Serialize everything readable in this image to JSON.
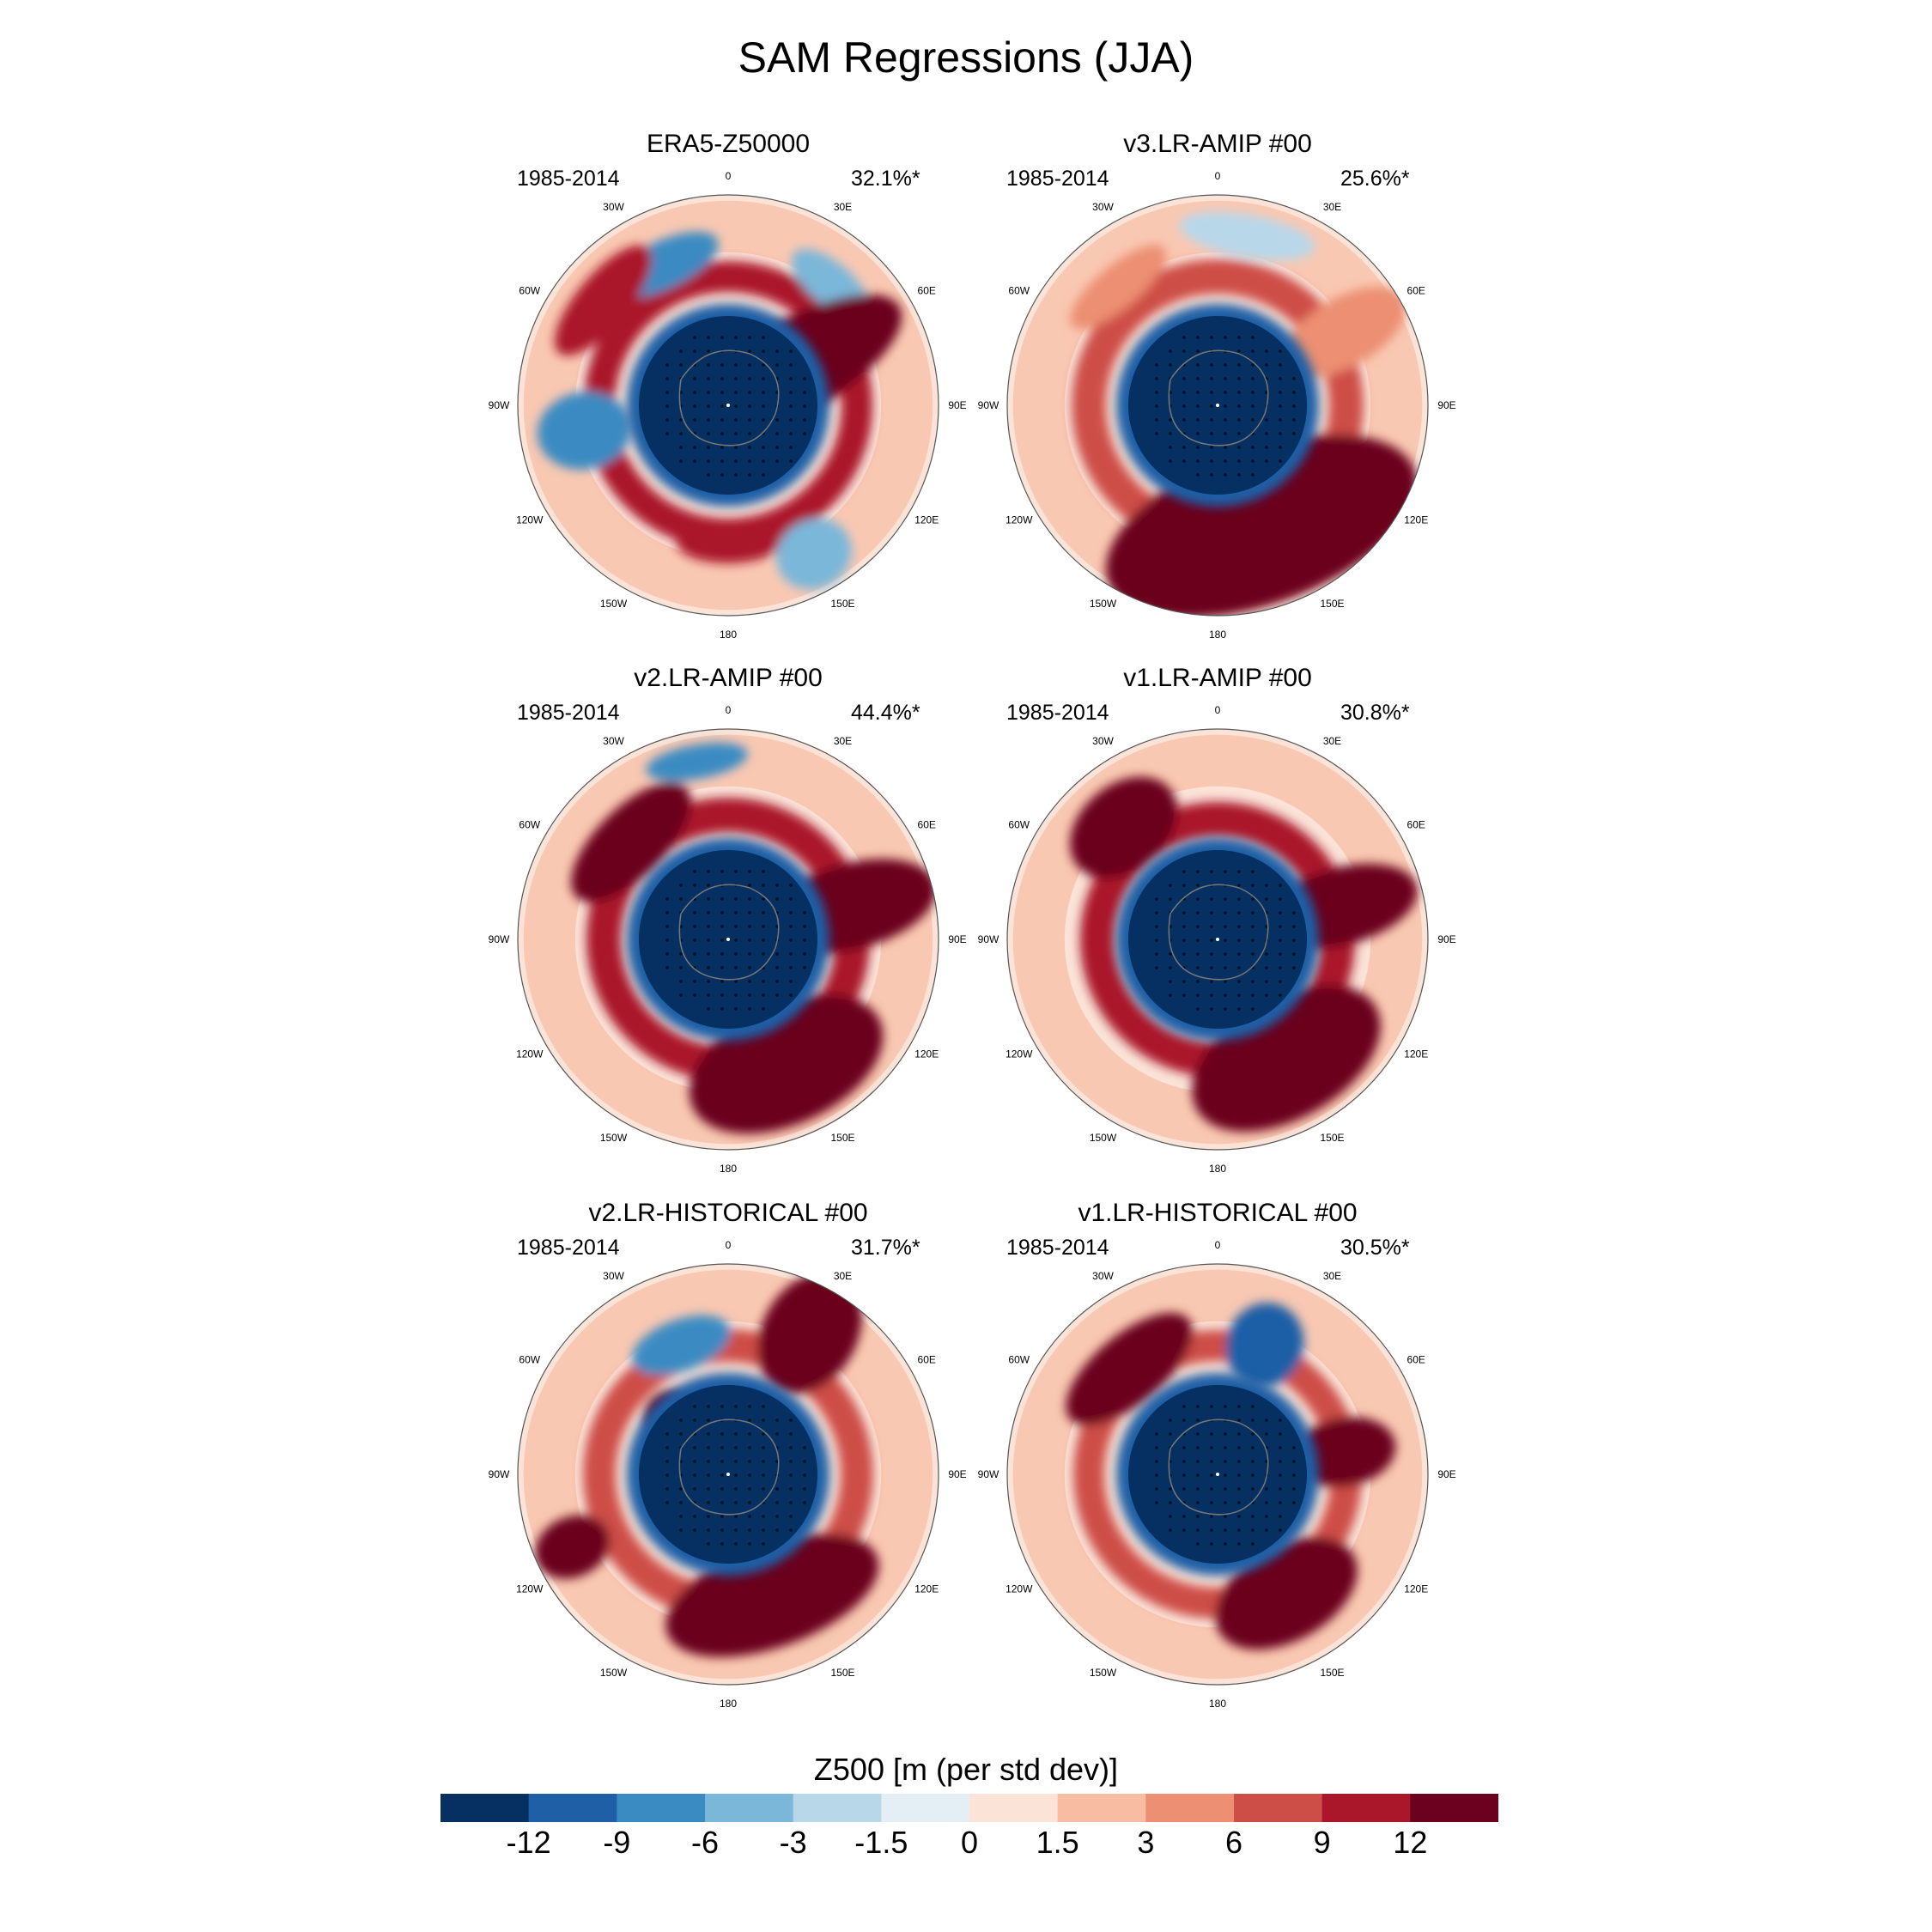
{
  "title": "SAM Regressions (JJA)",
  "chart_data": {
    "type": "polar-contour-map",
    "variable": "Z500 [m (per std dev)]",
    "colorbar": {
      "levels": [
        "-12",
        "-9",
        "-6",
        "-3",
        "-1.5",
        "0",
        "1.5",
        "3",
        "6",
        "9",
        "12"
      ],
      "colors": [
        "#053061",
        "#1f5fa6",
        "#3a8bc2",
        "#7ab7d9",
        "#b8d8ea",
        "#e3eef5",
        "#fbe3d7",
        "#f8bca2",
        "#ec8f72",
        "#cd4d47",
        "#aa172a",
        "#6b001f"
      ]
    },
    "longitude_labels": [
      "0",
      "30E",
      "60E",
      "90E",
      "120E",
      "150E",
      "180",
      "150W",
      "120W",
      "90W",
      "60W",
      "30W"
    ],
    "panels": [
      {
        "name": "ERA5-Z50000",
        "years": "1985-2014",
        "variance": "32.1%*"
      },
      {
        "name": "v3.LR-AMIP  #00",
        "years": "1985-2014",
        "variance": "25.6%*"
      },
      {
        "name": "v2.LR-AMIP  #00",
        "years": "1985-2014",
        "variance": "44.4%*"
      },
      {
        "name": "v1.LR-AMIP  #00",
        "years": "1985-2014",
        "variance": "30.8%*"
      },
      {
        "name": "v2.LR-HISTORICAL  #00",
        "years": "1985-2014",
        "variance": "31.7%*"
      },
      {
        "name": "v1.LR-HISTORICAL  #00",
        "years": "1985-2014",
        "variance": "30.5%*"
      }
    ]
  }
}
